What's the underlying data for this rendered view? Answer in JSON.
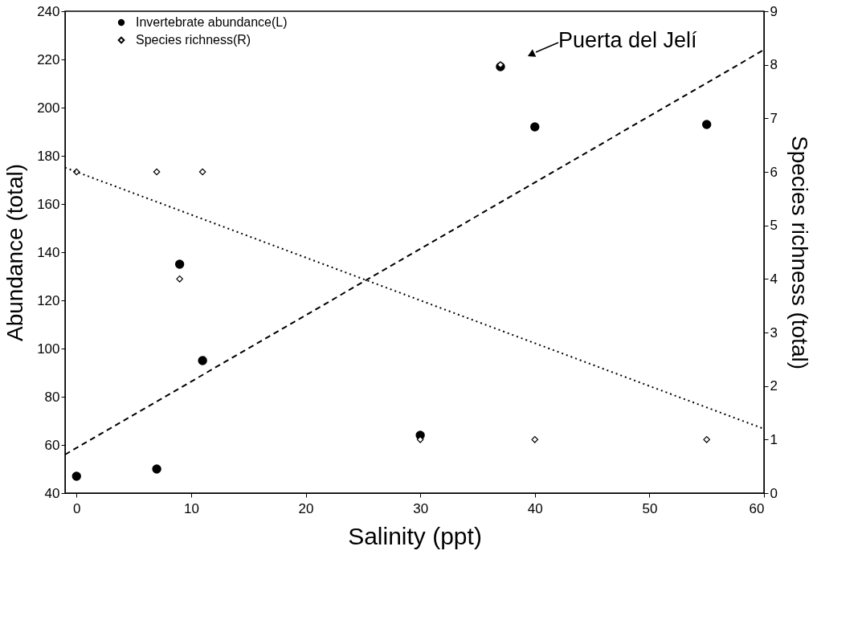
{
  "chart_data": {
    "type": "scatter",
    "xlabel": "Salinity  (ppt)",
    "ylabel": "Abundance (total)",
    "y2label": "Species richness (total)",
    "xlim": [
      -1,
      60
    ],
    "xticks": [
      0,
      10,
      20,
      30,
      40,
      50,
      60
    ],
    "ylim": [
      40,
      240
    ],
    "yticks": [
      40,
      60,
      80,
      100,
      120,
      140,
      160,
      180,
      200,
      220,
      240
    ],
    "y2lim": [
      0,
      9
    ],
    "y2ticks": [
      0,
      1,
      2,
      3,
      4,
      5,
      6,
      7,
      8,
      9
    ],
    "grid": false,
    "legend": "top left",
    "annotations": [
      {
        "text": "Puerta del Jelí",
        "x": 37,
        "y": 217
      }
    ],
    "series": [
      {
        "name": "Invertebrate abundance(L)",
        "color": "#000000",
        "marker": "circle",
        "x": [
          0,
          7,
          9,
          11,
          30,
          37,
          40,
          55
        ],
        "values": [
          47,
          50,
          135,
          95,
          64,
          217,
          192,
          193
        ]
      },
      {
        "name": "Species richness(R)",
        "color": "#000000",
        "marker": "diamond",
        "axis": "y2",
        "x": [
          0,
          7,
          9,
          11,
          30,
          37,
          40,
          55
        ],
        "values": [
          6,
          6,
          4,
          6,
          1,
          8,
          1,
          1
        ]
      },
      {
        "type": "line",
        "color": "#000000",
        "line_style": "dashed",
        "x": [
          -1,
          60
        ],
        "values": [
          56,
          224
        ]
      },
      {
        "type": "line",
        "color": "#000000",
        "line_style": "dotted",
        "axis": "y2",
        "x": [
          -1,
          60
        ],
        "values": [
          6.08,
          1.2
        ]
      }
    ]
  }
}
